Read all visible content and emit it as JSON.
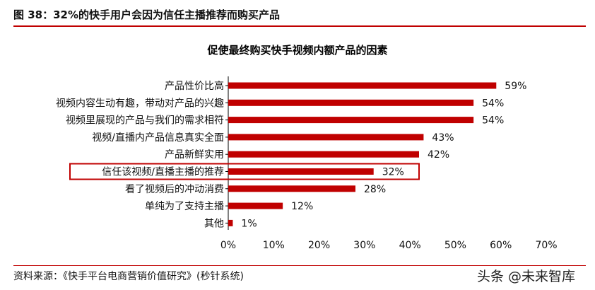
{
  "figure_title": "图 38：32%的快手用户会因为信任主播推荐而购买产品",
  "source": "资料来源：《快手平台电商营销价值研究》(秒针系统)",
  "watermark": "头条 @未来智库",
  "colors": {
    "bar": "#c00000",
    "highlight_box": "#c00000",
    "rule": "#c00000"
  },
  "chart_data": {
    "type": "bar",
    "orientation": "horizontal",
    "title": "促使最终购买快手视频内额产品的因素",
    "categories": [
      "产品性价比高",
      "视频内容生动有趣，带动对产品的兴趣",
      "视频里展现的产品与我们的需求相符",
      "视频/直播内产品信息真实全面",
      "产品新鲜实用",
      "信任该视频/直播主播的推荐",
      "看了视频后的冲动消费",
      "单纯为了支持主播",
      "其他"
    ],
    "values": [
      59,
      54,
      54,
      43,
      42,
      32,
      28,
      12,
      1
    ],
    "value_labels": [
      "59%",
      "54%",
      "54%",
      "43%",
      "42%",
      "32%",
      "28%",
      "12%",
      "1%"
    ],
    "highlighted_category": "信任该视频/直播主播的推荐",
    "xlim": [
      0,
      70
    ],
    "xticks": [
      "0%",
      "10%",
      "20%",
      "30%",
      "40%",
      "50%",
      "60%",
      "70%"
    ],
    "xlabel": "",
    "ylabel": "",
    "grid": false,
    "legend": "none"
  }
}
